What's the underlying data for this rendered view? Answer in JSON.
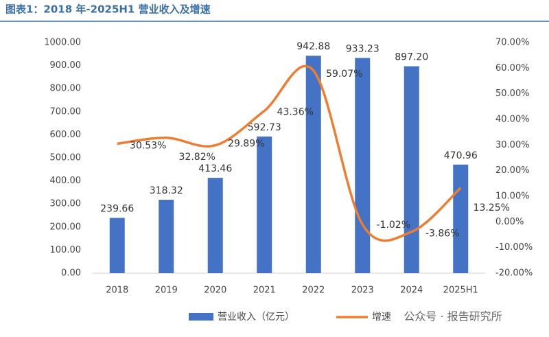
{
  "chart_data": {
    "type": "bar",
    "title": "图表1：2018 年-2025H1 营业收入及增速",
    "categories": [
      "2018",
      "2019",
      "2020",
      "2021",
      "2022",
      "2023",
      "2024",
      "2025H1"
    ],
    "series": [
      {
        "name": "营业收入（亿元）",
        "color": "#4472c4",
        "type": "bar",
        "values": [
          239.66,
          318.32,
          413.46,
          592.73,
          942.88,
          933.23,
          897.2,
          470.96
        ],
        "value_labels": [
          "239.66",
          "318.32",
          "413.46",
          "592.73",
          "942.88",
          "933.23",
          "897.20",
          "470.96"
        ]
      },
      {
        "name": "增速",
        "color": "#ed7d31",
        "type": "line",
        "axis": "y2",
        "values": [
          30.53,
          32.82,
          29.89,
          43.36,
          59.07,
          -1.02,
          -3.86,
          13.25
        ],
        "value_labels": [
          "30.53%",
          "32.82%",
          "29.89%",
          "43.36%",
          "59.07%",
          "-1.02%",
          "-3.86%",
          "13.25%"
        ]
      }
    ],
    "ylim": [
      0,
      1000
    ],
    "yticks": [
      {
        "value": 0,
        "label": "0.00"
      },
      {
        "value": 100,
        "label": "100.00"
      },
      {
        "value": 200,
        "label": "200.00"
      },
      {
        "value": 300,
        "label": "300.00"
      },
      {
        "value": 400,
        "label": "400.00"
      },
      {
        "value": 500,
        "label": "500.00"
      },
      {
        "value": 600,
        "label": "600.00"
      },
      {
        "value": 700,
        "label": "700.00"
      },
      {
        "value": 800,
        "label": "800.00"
      },
      {
        "value": 900,
        "label": "900.00"
      },
      {
        "value": 1000,
        "label": "1000.00"
      }
    ],
    "y2lim": [
      -20,
      70
    ],
    "y2ticks": [
      {
        "value": -20,
        "label": "-20.00%"
      },
      {
        "value": -10,
        "label": "-10.00%"
      },
      {
        "value": 0,
        "label": "0.00%"
      },
      {
        "value": 10,
        "label": "10.00%"
      },
      {
        "value": 20,
        "label": "20.00%"
      },
      {
        "value": 30,
        "label": "30.00%"
      },
      {
        "value": 40,
        "label": "40.00%"
      },
      {
        "value": 50,
        "label": "50.00%"
      },
      {
        "value": 60,
        "label": "60.00%"
      },
      {
        "value": 70,
        "label": "70.00%"
      }
    ],
    "grid": false,
    "legend": "bottom",
    "watermark": "公众号 · 报告研究所"
  }
}
